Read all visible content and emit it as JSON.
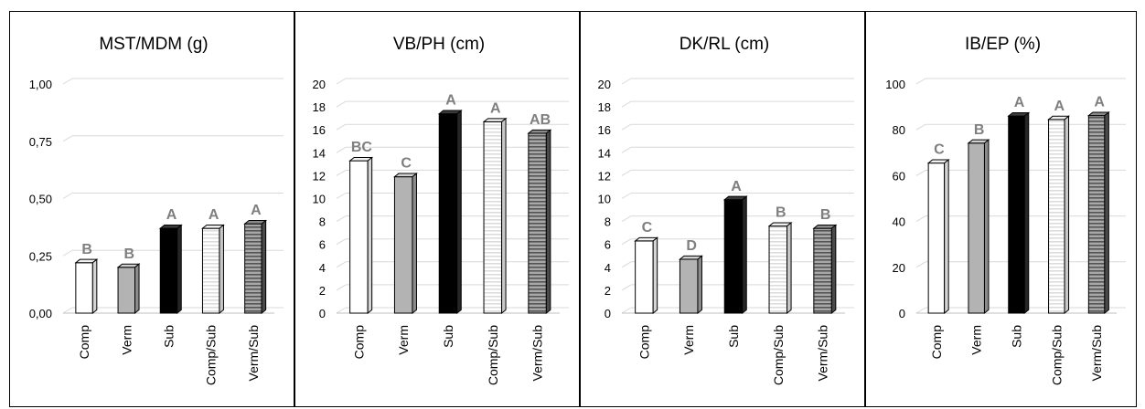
{
  "figure": {
    "panel_count": 4
  },
  "colors": {
    "comp_fill": "#ffffff",
    "verm_fill": "#b3b3b3",
    "sub_fill": "#000000",
    "stripe_light": "#dcdcdc",
    "stripe_dark": "#555555",
    "letter": "#7f7f7f",
    "grid": "#d9d9d9"
  },
  "chart_data": [
    {
      "type": "bar",
      "title": "MST/MDM (g)",
      "categories": [
        "Comp",
        "Verm",
        "Sub",
        "Comp/Sub",
        "Verm/Sub"
      ],
      "values": [
        0.22,
        0.2,
        0.37,
        0.37,
        0.39
      ],
      "letters": [
        "B",
        "B",
        "A",
        "A",
        "A"
      ],
      "ylim": [
        0,
        1
      ],
      "yticks": [
        0,
        0.25,
        0.5,
        0.75,
        1
      ],
      "ytick_labels": [
        "0,00",
        "0,25",
        "0,50",
        "0,75",
        "1,00"
      ],
      "grid": true
    },
    {
      "type": "bar",
      "title": "VB/PH (cm)",
      "categories": [
        "Comp",
        "Verm",
        "Sub",
        "Comp/Sub",
        "Verm/Sub"
      ],
      "values": [
        13.3,
        11.9,
        17.4,
        16.7,
        15.7
      ],
      "letters": [
        "BC",
        "C",
        "A",
        "A",
        "AB"
      ],
      "ylim": [
        0,
        20
      ],
      "yticks": [
        0,
        2,
        4,
        6,
        8,
        10,
        12,
        14,
        16,
        18,
        20
      ],
      "ytick_labels": [
        "0",
        "2",
        "4",
        "6",
        "8",
        "10",
        "12",
        "14",
        "16",
        "18",
        "20"
      ],
      "grid": true
    },
    {
      "type": "bar",
      "title": "DK/RL (cm)",
      "categories": [
        "Comp",
        "Verm",
        "Sub",
        "Comp/Sub",
        "Verm/Sub"
      ],
      "values": [
        6.3,
        4.7,
        9.9,
        7.6,
        7.4
      ],
      "letters": [
        "C",
        "D",
        "A",
        "B",
        "B"
      ],
      "ylim": [
        0,
        20
      ],
      "yticks": [
        0,
        2,
        4,
        6,
        8,
        10,
        12,
        14,
        16,
        18,
        20
      ],
      "ytick_labels": [
        "0",
        "2",
        "4",
        "6",
        "8",
        "10",
        "12",
        "14",
        "16",
        "18",
        "20"
      ],
      "grid": true
    },
    {
      "type": "bar",
      "title": "IB/EP (%)",
      "categories": [
        "Comp",
        "Verm",
        "Sub",
        "Comp/Sub",
        "Verm/Sub"
      ],
      "values": [
        65.5,
        74.2,
        86,
        84.5,
        86.2
      ],
      "letters": [
        "C",
        "B",
        "A",
        "A",
        "A"
      ],
      "ylim": [
        0,
        100
      ],
      "yticks": [
        0,
        20,
        40,
        60,
        80,
        100
      ],
      "ytick_labels": [
        "0",
        "20",
        "40",
        "60",
        "80",
        "100"
      ],
      "grid": true
    }
  ]
}
